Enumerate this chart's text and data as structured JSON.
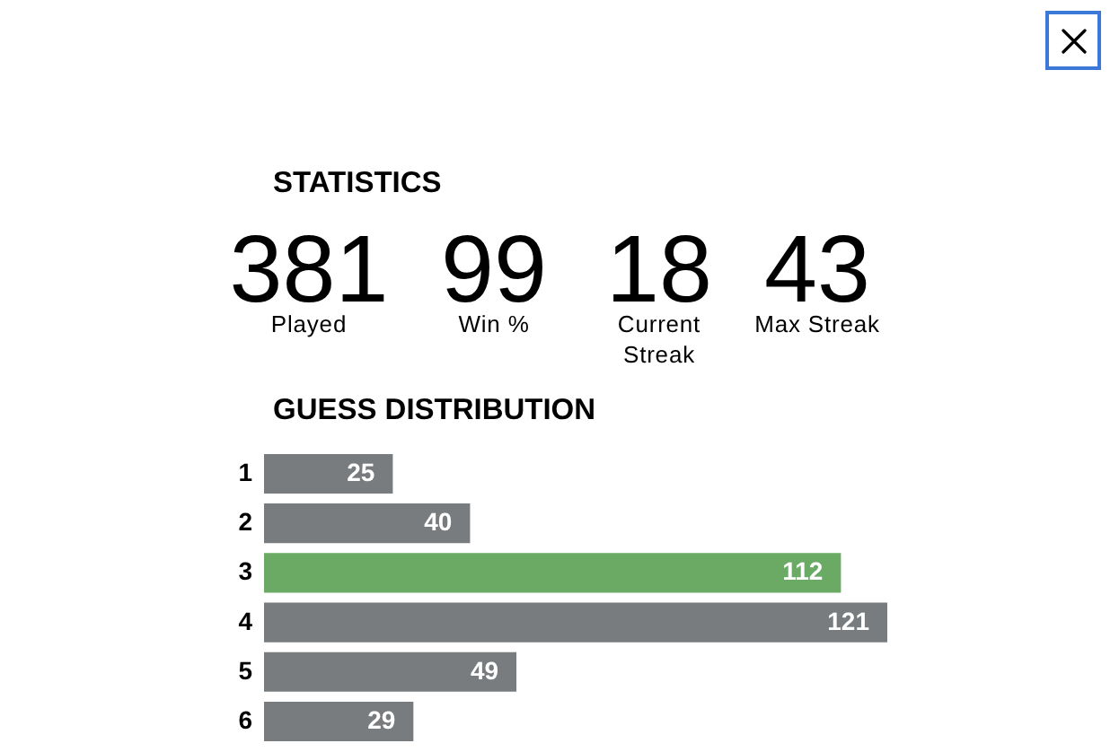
{
  "chart_data": [
    {
      "type": "other",
      "title": "STATISTICS",
      "categories": [
        "Played",
        "Win %",
        "Current Streak",
        "Max Streak"
      ],
      "values": [
        381,
        99,
        18,
        43
      ],
      "data_labels": true
    },
    {
      "type": "bar",
      "title": "GUESS DISTRIBUTION",
      "orientation": "horizontal",
      "categories": [
        "1",
        "2",
        "3",
        "4",
        "5",
        "6"
      ],
      "values": [
        25,
        40,
        112,
        121,
        49,
        29
      ],
      "colors": [
        "#787c7e",
        "#787c7e",
        "#6aaa64",
        "#787c7e",
        "#787c7e",
        "#787c7e"
      ],
      "data_labels": true
    }
  ]
}
